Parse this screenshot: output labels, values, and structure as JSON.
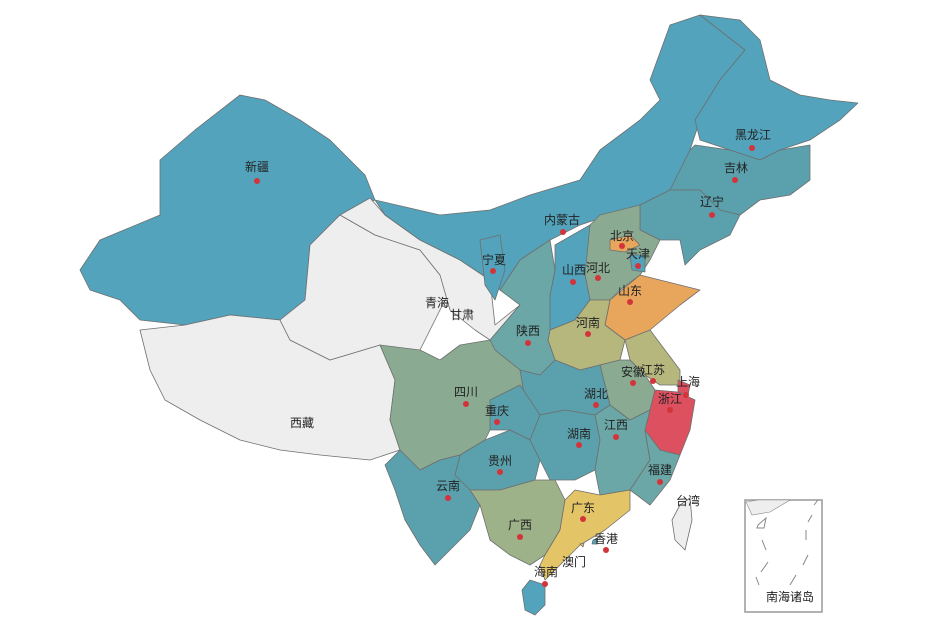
{
  "map": {
    "inset_label": "南海诸岛",
    "dot_color": "#d2343a",
    "regions": [
      {
        "name": "新疆",
        "color": "#52a3bb",
        "dot": true
      },
      {
        "name": "西藏",
        "color": "#eeeeee",
        "dot": false
      },
      {
        "name": "青海",
        "color": "#eeeeee",
        "dot": false
      },
      {
        "name": "甘肃",
        "color": "#eeeeee",
        "dot": false
      },
      {
        "name": "内蒙古",
        "color": "#52a3bb",
        "dot": true
      },
      {
        "name": "黑龙江",
        "color": "#52a3bb",
        "dot": true
      },
      {
        "name": "吉林",
        "color": "#5aa1ad",
        "dot": true
      },
      {
        "name": "辽宁",
        "color": "#5aa1ad",
        "dot": true
      },
      {
        "name": "河北",
        "color": "#8aab92",
        "dot": true
      },
      {
        "name": "北京",
        "color": "#e8a65c",
        "dot": true
      },
      {
        "name": "天津",
        "color": "#52a3bb",
        "dot": true
      },
      {
        "name": "山西",
        "color": "#52a3bb",
        "dot": true
      },
      {
        "name": "山东",
        "color": "#e8a65c",
        "dot": true
      },
      {
        "name": "河南",
        "color": "#b5b77c",
        "dot": true
      },
      {
        "name": "陕西",
        "color": "#6aa7a6",
        "dot": true
      },
      {
        "name": "宁夏",
        "color": "#52a3bb",
        "dot": true
      },
      {
        "name": "江苏",
        "color": "#b5b77c",
        "dot": true
      },
      {
        "name": "安徽",
        "color": "#8aab92",
        "dot": true
      },
      {
        "name": "上海",
        "color": "#dc5060",
        "dot": true
      },
      {
        "name": "浙江",
        "color": "#dc5060",
        "dot": true
      },
      {
        "name": "湖北",
        "color": "#5aa1ad",
        "dot": true
      },
      {
        "name": "四川",
        "color": "#8aab92",
        "dot": true
      },
      {
        "name": "重庆",
        "color": "#5aa1ad",
        "dot": true
      },
      {
        "name": "贵州",
        "color": "#5aa1ad",
        "dot": true
      },
      {
        "name": "云南",
        "color": "#5aa1ad",
        "dot": true
      },
      {
        "name": "湖南",
        "color": "#5aa1ad",
        "dot": true
      },
      {
        "name": "江西",
        "color": "#6aa7a6",
        "dot": true
      },
      {
        "name": "福建",
        "color": "#6aa7a6",
        "dot": true
      },
      {
        "name": "广西",
        "color": "#9db289",
        "dot": true
      },
      {
        "name": "广东",
        "color": "#e3c567",
        "dot": true
      },
      {
        "name": "海南",
        "color": "#52a3bb",
        "dot": true
      },
      {
        "name": "台湾",
        "color": "#eeeeee",
        "dot": false
      },
      {
        "name": "香港",
        "color": "#52a3bb",
        "dot": true
      },
      {
        "name": "澳门",
        "color": "#e3c567",
        "dot": false
      }
    ]
  }
}
